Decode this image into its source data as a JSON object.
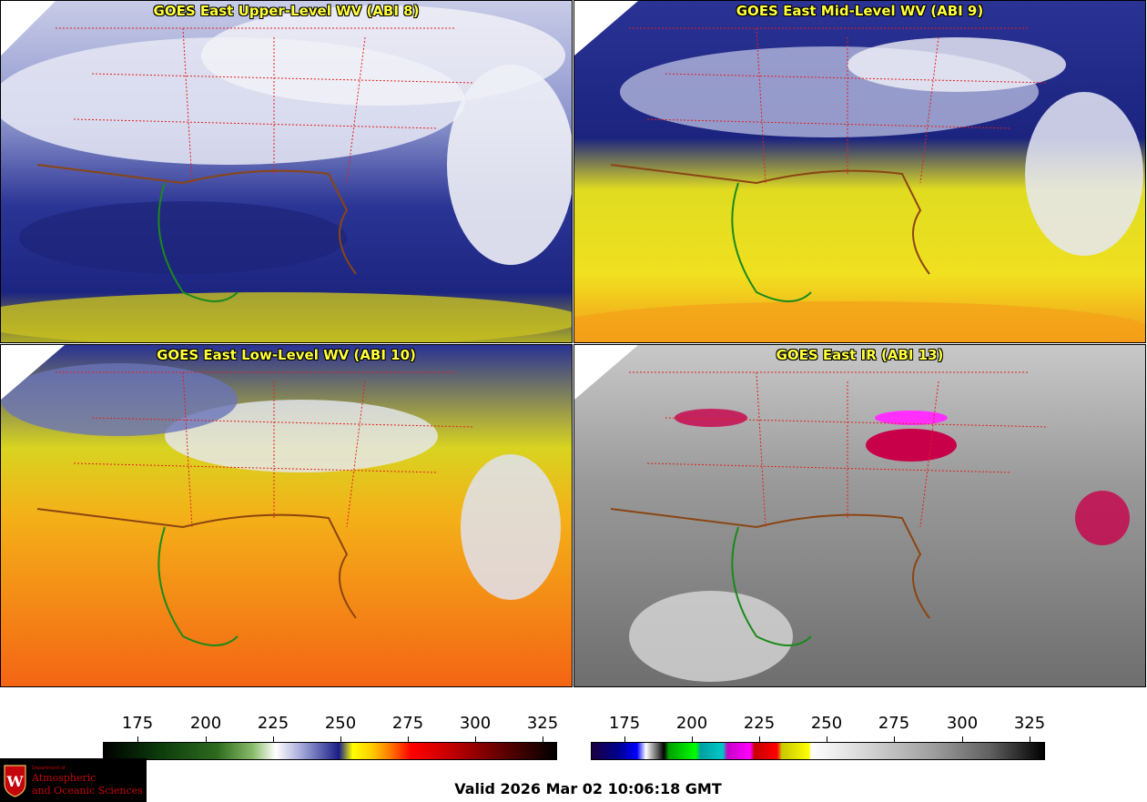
{
  "panels": [
    {
      "title": "GOES East Upper-Level WV (ABI 8)",
      "palette": "wv",
      "base": "#3a4aa8"
    },
    {
      "title": "GOES East Mid-Level WV (ABI 9)",
      "palette": "wv",
      "base": "#d8d820"
    },
    {
      "title": "GOES East Low-Level WV (ABI 10)",
      "palette": "wv",
      "base": "#f49418"
    },
    {
      "title": "GOES East IR (ABI 13)",
      "palette": "ir",
      "base": "#8a8a8a"
    }
  ],
  "colorbars": {
    "left": {
      "ticks": [
        "175",
        "200",
        "225",
        "250",
        "275",
        "300",
        "325"
      ]
    },
    "right": {
      "ticks": [
        "175",
        "200",
        "225",
        "250",
        "275",
        "300",
        "325"
      ]
    }
  },
  "logo": {
    "line1": "Department of",
    "line2": "Atmospheric",
    "line3": "and Oceanic Sciences",
    "emblem": "uw-crest-icon"
  },
  "footer": {
    "valid": "Valid 2026 Mar 02 10:06:18 GMT"
  },
  "colors": {
    "state_borders": "#e02020",
    "country_coast": "#8b4513",
    "coastline_south": "#1a8a1a",
    "title": "#ffff3a"
  }
}
